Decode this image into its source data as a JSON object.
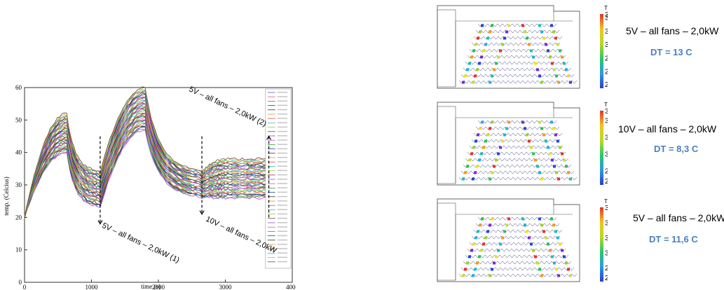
{
  "chart_data": {
    "type": "line",
    "xlabel": "time (s)",
    "ylabel": "temp. (Celcius)",
    "xlim": [
      0,
      4000
    ],
    "ylim": [
      0,
      60
    ],
    "xticks": [
      "0",
      "1000",
      "2000",
      "3000",
      "4000"
    ],
    "yticks": [
      "0",
      "10",
      "20",
      "30",
      "40",
      "50",
      "60"
    ],
    "key_times": [
      0,
      630,
      1130,
      1800,
      2650,
      3000,
      3650
    ],
    "series_upper": {
      "values": [
        20,
        52,
        34,
        60,
        34,
        38,
        38
      ]
    },
    "series_lower": {
      "values": [
        20,
        40,
        23,
        47,
        26,
        26,
        26
      ]
    },
    "series_count": 40,
    "series_colors": [
      "#8a4fd0",
      "#e14fb6",
      "#2aa82a",
      "#1f3fbf",
      "#2f2f2f",
      "#c7a437",
      "#e04646",
      "#2ec4c4",
      "#9ccc3c",
      "#7d3b2f"
    ],
    "annotations": [
      {
        "text": "5V – all fans – 2,0kW (1)",
        "x": 1130
      },
      {
        "text": "5V – all fans – 2,0kW (2)",
        "x": 3650
      },
      {
        "text": "10V – all fans – 2,0kW",
        "x": 2650
      }
    ]
  },
  "panels": [
    {
      "label": "5V – all fans – 2,0kW",
      "dt": "DT = 13 C",
      "scale_title": "T",
      "scale_ticks": [
        "35.6",
        "35",
        "32.5",
        "30",
        "27.5",
        "25",
        "22.6"
      ]
    },
    {
      "label": "10V – all fans – 2,0kW",
      "dt": "DT = 8,3 C",
      "scale_title": "T",
      "scale_ticks": [
        "35.1",
        "34",
        "32",
        "30",
        "28",
        "26.8"
      ]
    },
    {
      "label": "5V – all fans – 2,0kW",
      "dt": "DT = 11,6 C",
      "scale_title": "T",
      "scale_ticks": [
        "37.5",
        "35",
        "32.5",
        "30",
        "27.5",
        "25.9"
      ]
    }
  ]
}
